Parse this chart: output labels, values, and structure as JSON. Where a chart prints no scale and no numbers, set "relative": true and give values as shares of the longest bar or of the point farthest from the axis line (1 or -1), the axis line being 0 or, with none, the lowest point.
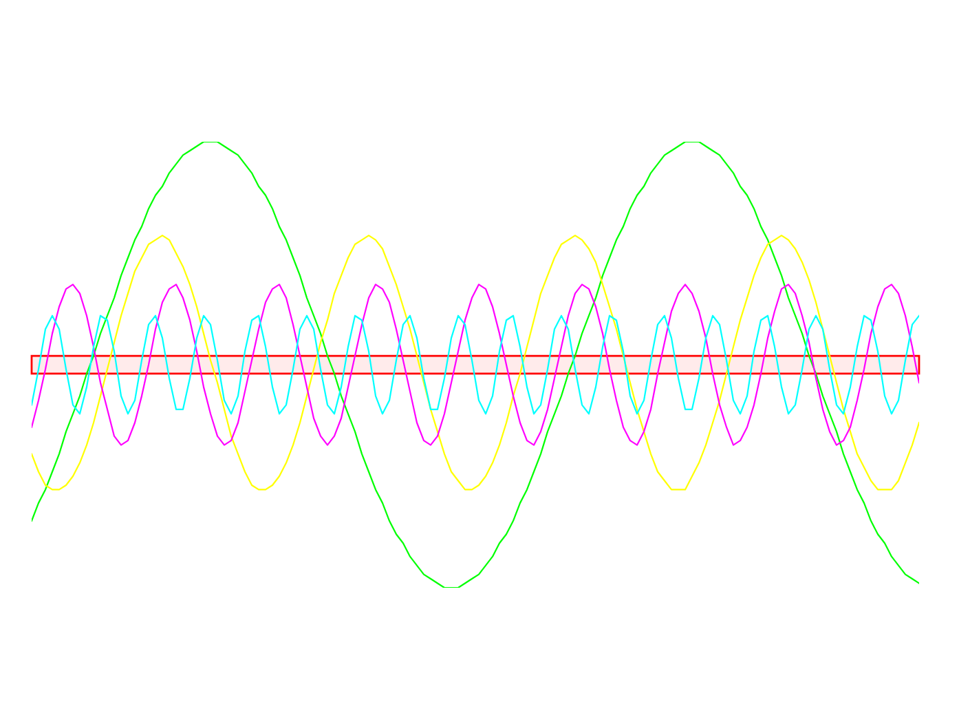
{
  "chart_data": {
    "type": "line",
    "relative": true,
    "categories": [
      null,
      null,
      null,
      null,
      null,
      null,
      null,
      null,
      null,
      null,
      null,
      null,
      null,
      null,
      null,
      null,
      null,
      null,
      null,
      null,
      null,
      null,
      null,
      null,
      null,
      null,
      null,
      null,
      null,
      null,
      null,
      null,
      null,
      null,
      null,
      null,
      null,
      null,
      null,
      null,
      null,
      null,
      null,
      null,
      null,
      null,
      null,
      null,
      null,
      null,
      null,
      null,
      null,
      null,
      null,
      null,
      null,
      null,
      null,
      null,
      null,
      null,
      null,
      null,
      null,
      null,
      null,
      null,
      null,
      null,
      null,
      null,
      null,
      null,
      null,
      null,
      null,
      null,
      null,
      null,
      null,
      null,
      null,
      null,
      null,
      null,
      null,
      null,
      null,
      null,
      null,
      null,
      null,
      null,
      null,
      null,
      null,
      null,
      null,
      null,
      null,
      null,
      null,
      null,
      null,
      null,
      null,
      null,
      null,
      null,
      null,
      null,
      null,
      null,
      null,
      null,
      null,
      null,
      null,
      null,
      null,
      null,
      null,
      null,
      null,
      null,
      null,
      null,
      null,
      null
    ],
    "series": [
      {
        "color": "#00ff00",
        "values": [
          0.15,
          0.19,
          0.22,
          0.26,
          0.3,
          0.35,
          0.39,
          0.43,
          0.48,
          0.52,
          0.57,
          0.61,
          0.65,
          0.7,
          0.74,
          0.78,
          0.81,
          0.85,
          0.88,
          0.9,
          0.93,
          0.95,
          0.97,
          0.98,
          0.99,
          1.0,
          1.0,
          1.0,
          0.99,
          0.98,
          0.97,
          0.95,
          0.93,
          0.9,
          0.88,
          0.85,
          0.81,
          0.78,
          0.74,
          0.7,
          0.65,
          0.61,
          0.57,
          0.52,
          0.48,
          0.43,
          0.39,
          0.35,
          0.3,
          0.26,
          0.22,
          0.19,
          0.15,
          0.12,
          0.1,
          0.07,
          0.05,
          0.03,
          0.02,
          0.01,
          0.0,
          0.0,
          0.0,
          0.01,
          0.02,
          0.03,
          0.05,
          0.07,
          0.1,
          0.12,
          0.15,
          0.19,
          0.22,
          0.26,
          0.3,
          0.35,
          0.39,
          0.43,
          0.48,
          0.52,
          0.57,
          0.61,
          0.65,
          0.7,
          0.74,
          0.78,
          0.81,
          0.85,
          0.88,
          0.9,
          0.93,
          0.95,
          0.97,
          0.98,
          0.99,
          1.0,
          1.0,
          1.0,
          0.99,
          0.98,
          0.97,
          0.95,
          0.93,
          0.9,
          0.88,
          0.85,
          0.81,
          0.78,
          0.74,
          0.7,
          0.65,
          0.61,
          0.57,
          0.52,
          0.48,
          0.43,
          0.39,
          0.35,
          0.3,
          0.26,
          0.22,
          0.19,
          0.15,
          0.12,
          0.1,
          0.07,
          0.05,
          0.03,
          0.02,
          0.01
        ]
      },
      {
        "color": "#ffff00",
        "values": [
          0.3,
          0.26,
          0.23,
          0.22,
          0.22,
          0.23,
          0.25,
          0.28,
          0.32,
          0.37,
          0.43,
          0.49,
          0.55,
          0.61,
          0.66,
          0.71,
          0.74,
          0.77,
          0.78,
          0.79,
          0.78,
          0.75,
          0.72,
          0.68,
          0.63,
          0.57,
          0.51,
          0.46,
          0.4,
          0.34,
          0.3,
          0.26,
          0.23,
          0.22,
          0.22,
          0.23,
          0.25,
          0.28,
          0.32,
          0.37,
          0.43,
          0.49,
          0.55,
          0.6,
          0.66,
          0.7,
          0.74,
          0.77,
          0.78,
          0.79,
          0.78,
          0.76,
          0.72,
          0.68,
          0.63,
          0.58,
          0.52,
          0.46,
          0.4,
          0.35,
          0.3,
          0.26,
          0.24,
          0.22,
          0.22,
          0.23,
          0.25,
          0.28,
          0.32,
          0.37,
          0.43,
          0.48,
          0.54,
          0.6,
          0.66,
          0.7,
          0.74,
          0.77,
          0.78,
          0.79,
          0.78,
          0.76,
          0.73,
          0.68,
          0.63,
          0.58,
          0.52,
          0.46,
          0.4,
          0.35,
          0.3,
          0.26,
          0.24,
          0.22,
          0.22,
          0.22,
          0.25,
          0.28,
          0.32,
          0.37,
          0.42,
          0.48,
          0.54,
          0.6,
          0.65,
          0.7,
          0.74,
          0.77,
          0.78,
          0.79,
          0.78,
          0.76,
          0.73,
          0.69,
          0.64,
          0.58,
          0.52,
          0.46,
          0.4,
          0.35,
          0.3,
          0.27,
          0.24,
          0.22,
          0.22,
          0.22,
          0.24,
          0.28,
          0.32,
          0.37
        ]
      },
      {
        "color": "#ff00ff",
        "values": [
          0.36,
          0.42,
          0.49,
          0.57,
          0.63,
          0.67,
          0.68,
          0.66,
          0.61,
          0.54,
          0.46,
          0.4,
          0.34,
          0.32,
          0.33,
          0.37,
          0.43,
          0.5,
          0.58,
          0.64,
          0.67,
          0.68,
          0.65,
          0.6,
          0.53,
          0.45,
          0.39,
          0.34,
          0.32,
          0.33,
          0.37,
          0.44,
          0.51,
          0.58,
          0.64,
          0.67,
          0.68,
          0.65,
          0.59,
          0.52,
          0.45,
          0.38,
          0.34,
          0.32,
          0.34,
          0.38,
          0.45,
          0.52,
          0.59,
          0.65,
          0.68,
          0.67,
          0.64,
          0.58,
          0.51,
          0.44,
          0.37,
          0.33,
          0.32,
          0.34,
          0.39,
          0.46,
          0.53,
          0.6,
          0.65,
          0.68,
          0.67,
          0.63,
          0.57,
          0.5,
          0.43,
          0.37,
          0.33,
          0.32,
          0.35,
          0.4,
          0.47,
          0.54,
          0.61,
          0.66,
          0.68,
          0.67,
          0.63,
          0.57,
          0.49,
          0.42,
          0.36,
          0.33,
          0.32,
          0.35,
          0.4,
          0.48,
          0.55,
          0.62,
          0.66,
          0.68,
          0.66,
          0.62,
          0.56,
          0.48,
          0.41,
          0.36,
          0.32,
          0.33,
          0.36,
          0.41,
          0.48,
          0.56,
          0.62,
          0.67,
          0.68,
          0.66,
          0.61,
          0.55,
          0.47,
          0.4,
          0.35,
          0.32,
          0.33,
          0.36,
          0.42,
          0.49,
          0.57,
          0.63,
          0.67,
          0.68,
          0.66,
          0.61,
          0.54,
          0.46
        ]
      },
      {
        "color": "#00ffff",
        "values": [
          0.41,
          0.49,
          0.58,
          0.61,
          0.58,
          0.49,
          0.41,
          0.39,
          0.45,
          0.54,
          0.61,
          0.6,
          0.53,
          0.43,
          0.39,
          0.42,
          0.51,
          0.59,
          0.61,
          0.56,
          0.47,
          0.4,
          0.4,
          0.47,
          0.56,
          0.61,
          0.59,
          0.51,
          0.42,
          0.39,
          0.43,
          0.53,
          0.6,
          0.61,
          0.54,
          0.45,
          0.39,
          0.41,
          0.49,
          0.58,
          0.61,
          0.58,
          0.49,
          0.41,
          0.39,
          0.45,
          0.54,
          0.61,
          0.6,
          0.53,
          0.43,
          0.39,
          0.42,
          0.51,
          0.59,
          0.61,
          0.56,
          0.47,
          0.4,
          0.4,
          0.47,
          0.56,
          0.61,
          0.59,
          0.51,
          0.42,
          0.39,
          0.43,
          0.53,
          0.6,
          0.61,
          0.54,
          0.45,
          0.39,
          0.41,
          0.49,
          0.58,
          0.61,
          0.58,
          0.49,
          0.41,
          0.39,
          0.45,
          0.54,
          0.61,
          0.6,
          0.53,
          0.43,
          0.39,
          0.42,
          0.51,
          0.59,
          0.61,
          0.56,
          0.47,
          0.4,
          0.4,
          0.47,
          0.56,
          0.61,
          0.59,
          0.51,
          0.42,
          0.39,
          0.43,
          0.53,
          0.6,
          0.61,
          0.54,
          0.45,
          0.39,
          0.41,
          0.49,
          0.58,
          0.61,
          0.58,
          0.49,
          0.41,
          0.39,
          0.45,
          0.54,
          0.61,
          0.6,
          0.53,
          0.43,
          0.39,
          0.42,
          0.51,
          0.59,
          0.61
        ]
      }
    ],
    "bands": [
      {
        "axis": "y",
        "from": 0.48,
        "to": 0.52,
        "color": "#ff0000"
      }
    ]
  }
}
